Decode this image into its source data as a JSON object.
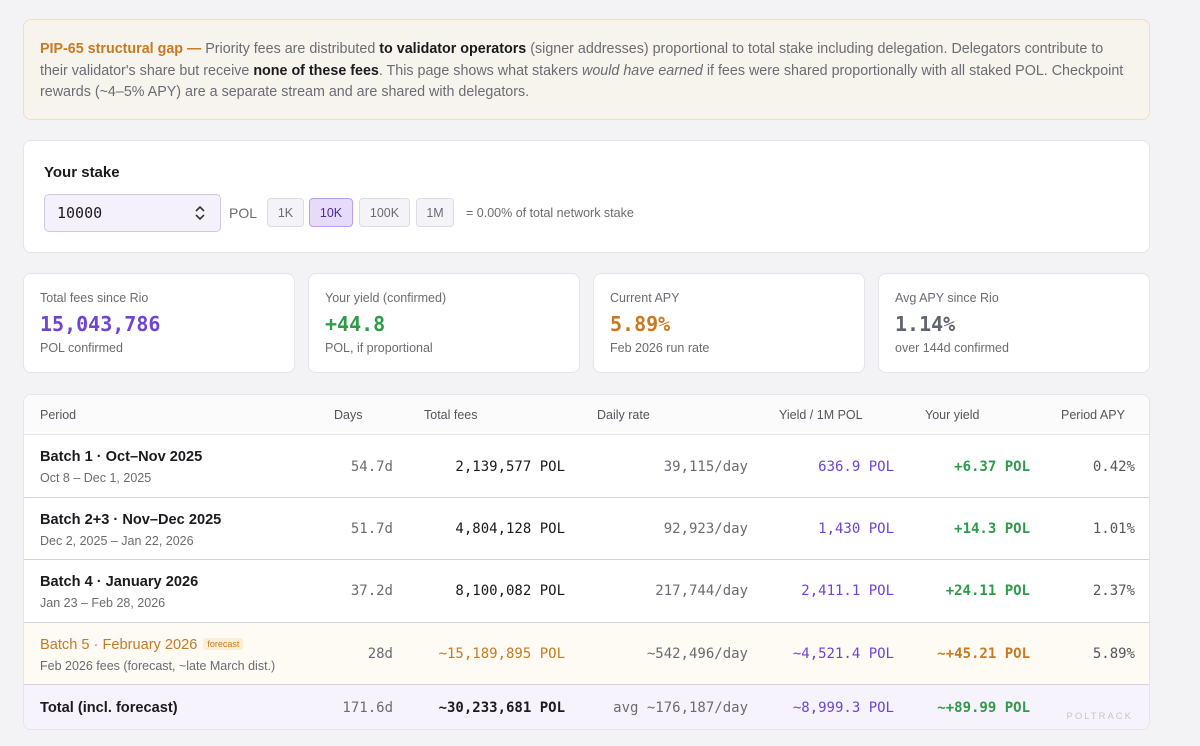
{
  "notice": {
    "lead": "PIP-65 structural gap —",
    "t1": " Priority fees are distributed ",
    "b1": "to validator operators",
    "t2": " (signer addresses) proportional to total stake including delegation. Delegators contribute to their validator's share but receive ",
    "b2": "none of these fees",
    "t3": ". This page shows what stakers ",
    "i1": "would have earned",
    "t4": " if fees were shared proportionally with all staked POL. Checkpoint rewards (~4–5% APY) are a separate stream and are shared with delegators."
  },
  "stake": {
    "title": "Your stake",
    "value": "10000",
    "unit": "POL",
    "presets": [
      "1K",
      "10K",
      "100K",
      "1M"
    ],
    "active_preset": "10K",
    "share_text": "= 0.00% of total network stake"
  },
  "cards": [
    {
      "label": "Total fees since Rio",
      "value": "15,043,786",
      "sub": "POL confirmed",
      "color": "#6f43d6"
    },
    {
      "label": "Your yield (confirmed)",
      "value": "+44.8",
      "sub": "POL, if proportional",
      "color": "#2f9a48"
    },
    {
      "label": "Current APY",
      "value": "5.89%",
      "sub": "Feb 2026 run rate",
      "color": "#c87a22"
    },
    {
      "label": "Avg APY since Rio",
      "value": "1.14%",
      "sub": "over 144d confirmed",
      "color": "#5f6570"
    }
  ],
  "table": {
    "headers": [
      "Period",
      "Days",
      "Total fees",
      "Daily rate",
      "Yield / 1M POL",
      "Your yield",
      "Period APY"
    ],
    "rows": [
      {
        "name": "Batch 1 · Oct–Nov 2025",
        "dates": "Oct 8 – Dec 1, 2025",
        "days": "54.7d",
        "fees": "2,139,577 POL",
        "daily": "39,115/day",
        "yield1m": "636.9 POL",
        "your": "+6.37 POL",
        "apy": "0.42%"
      },
      {
        "name": "Batch 2+3 · Nov–Dec 2025",
        "dates": "Dec 2, 2025 – Jan 22, 2026",
        "days": "51.7d",
        "fees": "4,804,128 POL",
        "daily": "92,923/day",
        "yield1m": "1,430 POL",
        "your": "+14.3 POL",
        "apy": "1.01%"
      },
      {
        "name": "Batch 4 · January 2026",
        "dates": "Jan 23 – Feb 28, 2026",
        "days": "37.2d",
        "fees": "8,100,082 POL",
        "daily": "217,744/day",
        "yield1m": "2,411.1 POL",
        "your": "+24.11 POL",
        "apy": "2.37%"
      },
      {
        "name": "Batch 5 · February 2026",
        "badge": "forecast",
        "dates": "Feb 2026 fees (forecast, ~late March dist.)",
        "days": "28d",
        "fees": "~15,189,895 POL",
        "daily": "~542,496/day",
        "yield1m": "~4,521.4 POL",
        "your": "~+45.21 POL",
        "apy": "5.89%"
      }
    ],
    "total": {
      "name": "Total (incl. forecast)",
      "days": "171.6d",
      "fees": "~30,233,681 POL",
      "daily": "avg ~176,187/day",
      "yield1m": "~8,999.3 POL",
      "your": "~+89.99 POL"
    }
  },
  "watermark": "POLTRACK",
  "colors": {
    "purple": "#6f43d6",
    "green": "#2f9a48",
    "orange": "#c87a22",
    "gray": "#6b6b74"
  }
}
